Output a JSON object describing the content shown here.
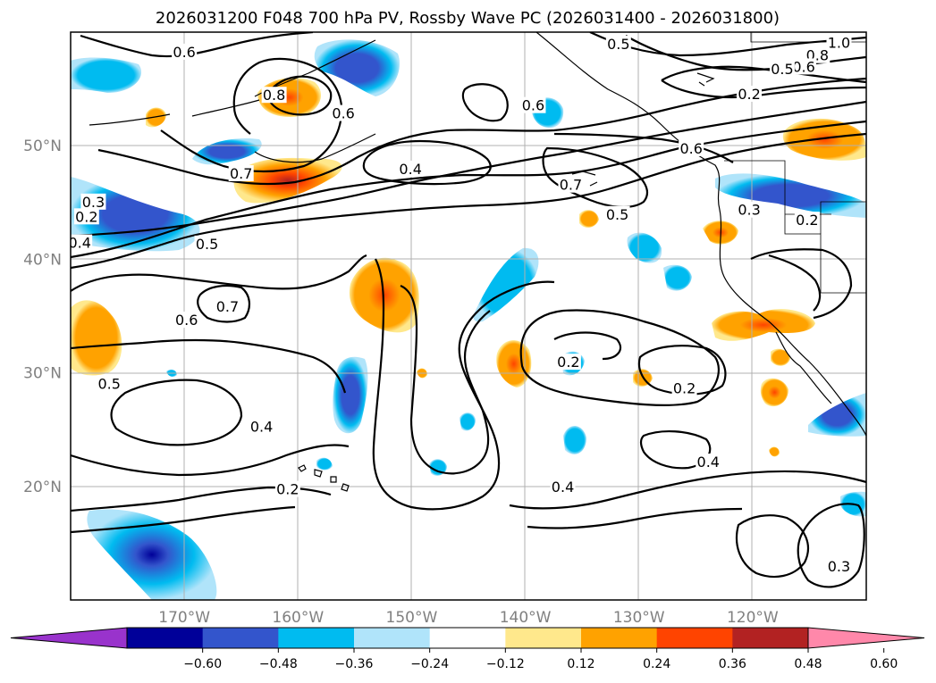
{
  "title": "2026031200 F048 700 hPa PV, Rossby Wave PC (2026031400 - 2026031800)",
  "map": {
    "projection": "equirectangular",
    "lon_range": [
      -180,
      -110
    ],
    "lat_range": [
      10,
      60
    ],
    "lon_ticks": [
      {
        "value": -170,
        "label": "170°W"
      },
      {
        "value": -160,
        "label": "160°W"
      },
      {
        "value": -150,
        "label": "150°W"
      },
      {
        "value": -140,
        "label": "140°W"
      },
      {
        "value": -130,
        "label": "130°W"
      },
      {
        "value": -120,
        "label": "120°W"
      }
    ],
    "lat_ticks": [
      {
        "value": 20,
        "label": "20°N"
      },
      {
        "value": 30,
        "label": "30°N"
      },
      {
        "value": 40,
        "label": "40°N"
      },
      {
        "value": 50,
        "label": "50°N"
      }
    ],
    "grid": true,
    "contour_levels": [
      "0.2",
      "0.3",
      "0.4",
      "0.5",
      "0.6",
      "0.7",
      "0.8",
      "1.0"
    ],
    "contour_labels": [
      {
        "text": "0.6",
        "lon": -170.0,
        "lat": 58.2
      },
      {
        "text": "0.8",
        "lon": -162.1,
        "lat": 54.4
      },
      {
        "text": "0.6",
        "lon": -156.0,
        "lat": 52.8
      },
      {
        "text": "0.6",
        "lon": -139.3,
        "lat": 53.5
      },
      {
        "text": "0.5",
        "lon": -131.8,
        "lat": 58.9
      },
      {
        "text": "1.0",
        "lon": -112.4,
        "lat": 59.0
      },
      {
        "text": "0.8",
        "lon": -114.3,
        "lat": 57.9
      },
      {
        "text": "0.6",
        "lon": -115.5,
        "lat": 56.9
      },
      {
        "text": "0.5",
        "lon": -117.4,
        "lat": 56.7
      },
      {
        "text": "0.2",
        "lon": -120.3,
        "lat": 54.5
      },
      {
        "text": "0.6",
        "lon": -125.4,
        "lat": 49.7
      },
      {
        "text": "0.7",
        "lon": -165.0,
        "lat": 47.5
      },
      {
        "text": "0.4",
        "lon": -150.1,
        "lat": 47.9
      },
      {
        "text": "0.7",
        "lon": -136.0,
        "lat": 46.5
      },
      {
        "text": "0.5",
        "lon": -131.9,
        "lat": 43.9
      },
      {
        "text": "0.3",
        "lon": -120.3,
        "lat": 44.3
      },
      {
        "text": "0.2",
        "lon": -115.2,
        "lat": 43.4
      },
      {
        "text": "0.3",
        "lon": -178.0,
        "lat": 45.0
      },
      {
        "text": "0.2",
        "lon": -178.6,
        "lat": 43.7
      },
      {
        "text": "0.4",
        "lon": -179.2,
        "lat": 41.4
      },
      {
        "text": "0.5",
        "lon": -168.0,
        "lat": 41.3
      },
      {
        "text": "0.7",
        "lon": -166.2,
        "lat": 35.8
      },
      {
        "text": "0.6",
        "lon": -169.8,
        "lat": 34.6
      },
      {
        "text": "0.5",
        "lon": -176.6,
        "lat": 29.0
      },
      {
        "text": "0.4",
        "lon": -163.2,
        "lat": 25.2
      },
      {
        "text": "0.2",
        "lon": -160.9,
        "lat": 19.7
      },
      {
        "text": "0.2",
        "lon": -136.2,
        "lat": 30.9
      },
      {
        "text": "0.2",
        "lon": -126.0,
        "lat": 28.6
      },
      {
        "text": "0.4",
        "lon": -123.9,
        "lat": 22.1
      },
      {
        "text": "0.4",
        "lon": -136.7,
        "lat": 19.9
      },
      {
        "text": "0.3",
        "lon": -112.4,
        "lat": 12.9
      }
    ]
  },
  "colorbar": {
    "orientation": "horizontal",
    "extend": "both",
    "boundaries": [
      -0.72,
      -0.6,
      -0.48,
      -0.36,
      -0.24,
      -0.12,
      0.12,
      0.24,
      0.36,
      0.48,
      0.6,
      0.72
    ],
    "colors": [
      "#9933cc",
      "#000099",
      "#3355cc",
      "#00bbf0",
      "#b0e4fa",
      "#ffffff",
      "#ffe88c",
      "#ffa200",
      "#ff4400",
      "#b22222",
      "#ff88aa"
    ],
    "tick_labels": [
      "−0.60",
      "−0.48",
      "−0.36",
      "−0.24",
      "−0.12",
      "0.12",
      "0.24",
      "0.36",
      "0.48",
      "0.60"
    ]
  }
}
